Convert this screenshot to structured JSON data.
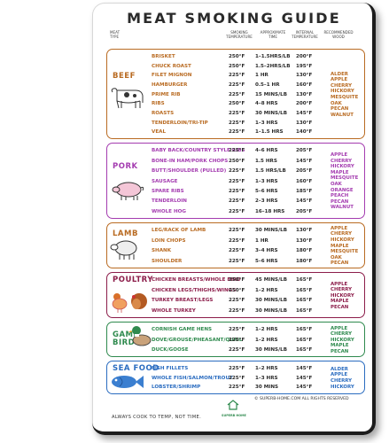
{
  "title": "MEAT SMOKING GUIDE",
  "columns": {
    "meat": "MEAT TYPE",
    "smoking": "SMOKING TEMPERATURE",
    "approx": "APPROXIMATE TIME",
    "internal": "INTERNAL TEMPERATURE",
    "wood": "RECOMMENDED WOOD"
  },
  "sections": [
    {
      "name": "BEEF",
      "color": "#b96b22",
      "rows": [
        {
          "cut": "BRISKET",
          "smoke": "250°F",
          "time": "1–1.5HRS/LB",
          "internal": "200°F"
        },
        {
          "cut": "CHUCK ROAST",
          "smoke": "250°F",
          "time": "1.5–2HRS/LB",
          "internal": "195°F"
        },
        {
          "cut": "FILET MIGNON",
          "smoke": "225°F",
          "time": "1 HR",
          "internal": "130°F"
        },
        {
          "cut": "HAMBURGER",
          "smoke": "225°F",
          "time": "0.5–1 HR",
          "internal": "160°F"
        },
        {
          "cut": "PRIME RIB",
          "smoke": "225°F",
          "time": "15 MINS/LB",
          "internal": "130°F"
        },
        {
          "cut": "RIBS",
          "smoke": "250°F",
          "time": "4–8 HRS",
          "internal": "200°F"
        },
        {
          "cut": "ROASTS",
          "smoke": "225°F",
          "time": "30 MINS/LB",
          "internal": "145°F"
        },
        {
          "cut": "TENDERLOIN/TRI-TIP",
          "smoke": "225°F",
          "time": "1–3 HRS",
          "internal": "130°F"
        },
        {
          "cut": "VEAL",
          "smoke": "225°F",
          "time": "1–1.5 HRS",
          "internal": "140°F"
        }
      ],
      "woods": [
        "ALDER",
        "APPLE",
        "CHERRY",
        "HICKORY",
        "MESQUITE",
        "OAK",
        "PECAN",
        "WALNUT"
      ]
    },
    {
      "name": "PORK",
      "color": "#a43cb0",
      "rows": [
        {
          "cut": "BABY BACK/COUNTRY STYLE RIBS",
          "smoke": "225°F",
          "time": "4–6 HRS",
          "internal": "205°F"
        },
        {
          "cut": "BONE-IN HAM/PORK CHOPS",
          "smoke": "250°F",
          "time": "1.5 HRS",
          "internal": "145°F"
        },
        {
          "cut": "BUTT/SHOULDER (PULLED)",
          "smoke": "225°F",
          "time": "1.5 HRS/LB",
          "internal": "205°F"
        },
        {
          "cut": "SAUSAGE",
          "smoke": "225°F",
          "time": "1–3 HRS",
          "internal": "160°F"
        },
        {
          "cut": "SPARE RIBS",
          "smoke": "225°F",
          "time": "5–6 HRS",
          "internal": "185°F"
        },
        {
          "cut": "TENDERLOIN",
          "smoke": "225°F",
          "time": "2–3 HRS",
          "internal": "145°F"
        },
        {
          "cut": "WHOLE HOG",
          "smoke": "225°F",
          "time": "16–18 HRS",
          "internal": "205°F"
        }
      ],
      "woods": [
        "APPLE",
        "CHERRY",
        "HICKORY",
        "MAPLE",
        "MESQUITE",
        "OAK",
        "ORANGE",
        "PEACH",
        "PECAN",
        "WALNUT"
      ]
    },
    {
      "name": "LAMB",
      "color": "#b96b22",
      "rows": [
        {
          "cut": "LEG/RACK OF LAMB",
          "smoke": "225°F",
          "time": "30 MINS/LB",
          "internal": "130°F"
        },
        {
          "cut": "LOIN CHOPS",
          "smoke": "225°F",
          "time": "1 HR",
          "internal": "130°F"
        },
        {
          "cut": "SHANK",
          "smoke": "225°F",
          "time": "3–4 HRS",
          "internal": "180°F"
        },
        {
          "cut": "SHOULDER",
          "smoke": "225°F",
          "time": "5–6 HRS",
          "internal": "180°F"
        }
      ],
      "woods": [
        "APPLE",
        "CHERRY",
        "HICKORY",
        "MAPLE",
        "MESQUITE",
        "OAK",
        "PECAN"
      ]
    },
    {
      "name": "POULTRY",
      "color": "#8c1d4a",
      "rows": [
        {
          "cut": "CHICKEN BREASTS/WHOLE BIRD",
          "smoke": "250°F",
          "time": "45 MINS/LB",
          "internal": "165°F"
        },
        {
          "cut": "CHICKEN LEGS/THIGHS/WINGS",
          "smoke": "250°F",
          "time": "1–2 HRS",
          "internal": "165°F"
        },
        {
          "cut": "TURKEY BREAST/LEGS",
          "smoke": "225°F",
          "time": "30 MINS/LB",
          "internal": "165°F"
        },
        {
          "cut": "WHOLE TURKEY",
          "smoke": "225°F",
          "time": "30 MINS/LB",
          "internal": "165°F"
        }
      ],
      "woods": [
        "APPLE",
        "CHERRY",
        "HICKORY",
        "MAPLE",
        "PECAN"
      ]
    },
    {
      "name": "GAME BIRD",
      "color": "#2f8a4e",
      "rows": [
        {
          "cut": "CORNISH GAME HENS",
          "smoke": "225°F",
          "time": "1–2 HRS",
          "internal": "165°F"
        },
        {
          "cut": "DOVE/GROUSE/PHEASANT/QUAIL",
          "smoke": "225°F",
          "time": "1–2 HRS",
          "internal": "165°F"
        },
        {
          "cut": "DUCK/GOOSE",
          "smoke": "225°F",
          "time": "30 MINS/LB",
          "internal": "165°F"
        }
      ],
      "woods": [
        "APPLE",
        "CHERRY",
        "HICKORY",
        "MAPLE",
        "PECAN"
      ]
    },
    {
      "name": "SEA FOOD",
      "color": "#2a6cc0",
      "rows": [
        {
          "cut": "FISH FILLETS",
          "smoke": "225°F",
          "time": "1–2 HRS",
          "internal": "145°F"
        },
        {
          "cut": "WHOLE FISH/SALMON/TROUT",
          "smoke": "225°F",
          "time": "1–3 HRS",
          "internal": "145°F"
        },
        {
          "cut": "LOBSTER/SHRIMP",
          "smoke": "225°F",
          "time": "30 MINS",
          "internal": "145°F"
        }
      ],
      "woods": [
        "ALDER",
        "APPLE",
        "CHERRY",
        "HICKORY"
      ]
    }
  ],
  "footer": {
    "tagline": "ALWAYS COOK TO TEMP, NOT TIME.",
    "brand": "SUPERB HOME",
    "rights": "© SUPERB-HOME.COM    ALL RIGHTS RESERVED"
  }
}
